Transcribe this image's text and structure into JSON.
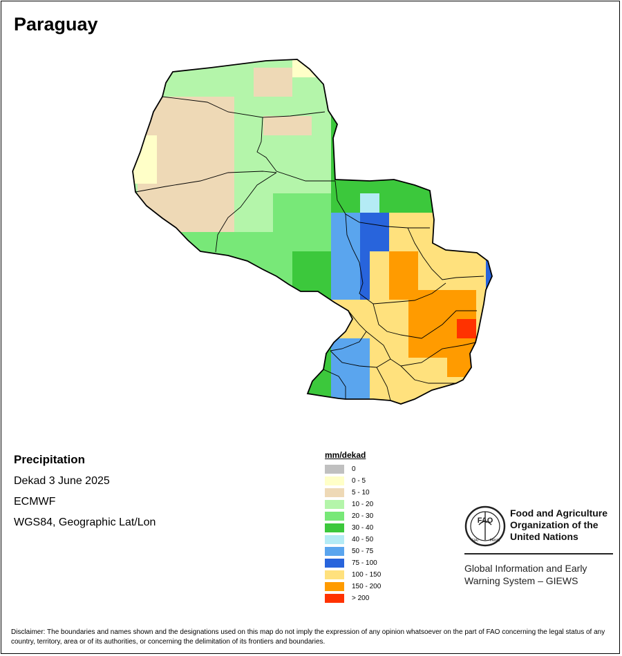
{
  "title": "Paraguay",
  "info": {
    "heading": "Precipitation",
    "period": "Dekad 3 June 2025",
    "model": "ECMWF",
    "projection": "WGS84, Geographic Lat/Lon"
  },
  "legend": {
    "title": "mm/dekad",
    "classes": [
      {
        "label": "0",
        "color": "#c0c0c0"
      },
      {
        "label": "0 - 5",
        "color": "#ffffc8"
      },
      {
        "label": "5 - 10",
        "color": "#eed9b6"
      },
      {
        "label": "10 - 20",
        "color": "#b4f5aa"
      },
      {
        "label": "20 - 30",
        "color": "#78e878"
      },
      {
        "label": "30 - 40",
        "color": "#3cc83c"
      },
      {
        "label": "40 - 50",
        "color": "#b4ebf5"
      },
      {
        "label": "50 - 75",
        "color": "#5aa5ee"
      },
      {
        "label": "75 - 100",
        "color": "#2864dc"
      },
      {
        "label": "100 - 150",
        "color": "#ffe17d"
      },
      {
        "label": "150 - 200",
        "color": "#ff9b00"
      },
      {
        "label": "> 200",
        "color": "#ff3200"
      }
    ]
  },
  "organization": {
    "name_line1": "Food and Agriculture",
    "name_line2": "Organization of the",
    "name_line3": "United Nations",
    "logo_text": "FAO",
    "logo_motto_left": "FIAT",
    "logo_motto_right": "PANIS",
    "system_line1": "Global Information and Early",
    "system_line2": "Warning System – GIEWS"
  },
  "disclaimer": "Disclaimer: The boundaries and names shown and the designations used on this map do not imply the expression of any opinion whatsoever on the part of FAO concerning the legal status of any country, territory, area or of its authorities, or concerning the delimitation of its frontiers and boundaries."
}
